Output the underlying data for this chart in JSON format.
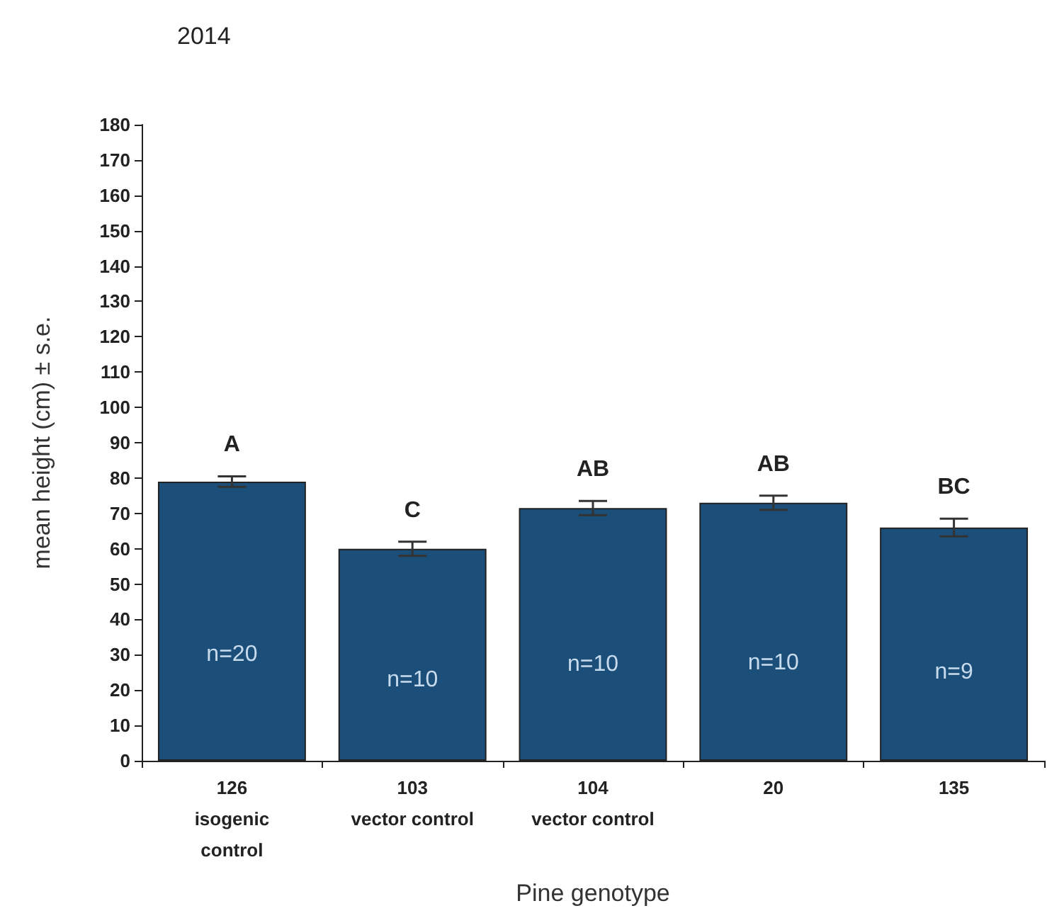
{
  "chart_data": {
    "type": "bar",
    "title": "2014",
    "xlabel": "Pine genotype",
    "ylabel": "mean height (cm) ± s.e.",
    "categories": [
      "126\nisogenic\ncontrol",
      "103\nvector control",
      "104\nvector control",
      "20",
      "135"
    ],
    "values": [
      79,
      60,
      71.5,
      73,
      66
    ],
    "errors": [
      1.5,
      2,
      2,
      2,
      2.5
    ],
    "color": "#1b4f7a",
    "ylim": [
      0,
      180
    ],
    "yticks": [
      0,
      10,
      20,
      30,
      40,
      50,
      60,
      70,
      80,
      90,
      100,
      110,
      120,
      130,
      140,
      150,
      160,
      170,
      180
    ],
    "grid": false,
    "annotations": [
      "A",
      "C",
      "AB",
      "AB",
      "BC",
      "n=20",
      "n=10",
      "n=10",
      "n=10",
      "n=9"
    ]
  }
}
